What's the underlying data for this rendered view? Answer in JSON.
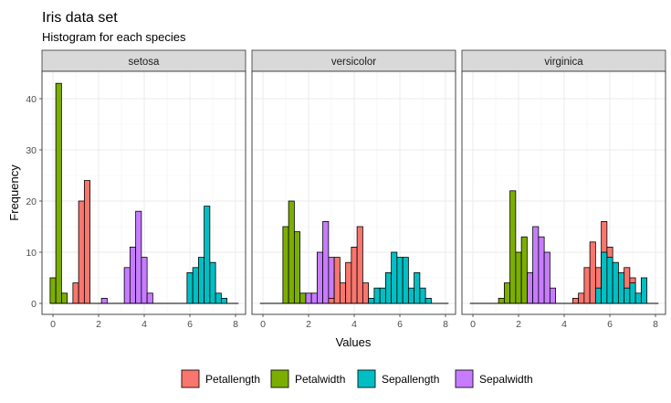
{
  "chart_data": {
    "type": "bar",
    "title": "Iris data set",
    "subtitle": "Histogram for each species",
    "xlabel": "Values",
    "ylabel": "Frequency",
    "xlim": [
      0,
      8
    ],
    "ylim": [
      0,
      45
    ],
    "x_ticks": [
      "0",
      "2",
      "4",
      "6",
      "8"
    ],
    "y_ticks": [
      "0",
      "10",
      "20",
      "30",
      "40"
    ],
    "bin_width": 0.25,
    "bin_start": 0,
    "grid": true,
    "legend_position": "bottom",
    "legend_order": [
      "Petallength",
      "Petalwidth",
      "Sepallength",
      "Sepalwidth"
    ],
    "series_colors": {
      "Petallength": "#F8766D",
      "Petalwidth": "#7CAE00",
      "Sepallength": "#00BFC4",
      "Sepalwidth": "#C77CFF"
    },
    "draw_order": [
      "Sepalwidth",
      "Petallength",
      "Petalwidth",
      "Sepallength"
    ],
    "facets": [
      {
        "label": "setosa",
        "series": [
          {
            "name": "Petallength",
            "values": [
              0,
              0,
              0,
              0,
              4,
              20,
              24,
              0,
              0,
              0,
              0,
              0,
              0,
              0,
              0,
              0,
              0,
              0,
              0,
              0,
              0,
              0,
              0,
              0,
              0,
              0,
              0,
              0,
              0,
              0,
              0,
              0,
              0
            ]
          },
          {
            "name": "Petalwidth",
            "values": [
              5,
              43,
              2,
              0,
              0,
              0,
              0,
              0,
              0,
              0,
              0,
              0,
              0,
              0,
              0,
              0,
              0,
              0,
              0,
              0,
              0,
              0,
              0,
              0,
              0,
              0,
              0,
              0,
              0,
              0,
              0,
              0,
              0
            ]
          },
          {
            "name": "Sepallength",
            "values": [
              0,
              0,
              0,
              0,
              0,
              0,
              0,
              0,
              0,
              0,
              0,
              0,
              0,
              0,
              0,
              0,
              0,
              0,
              0,
              0,
              0,
              0,
              0,
              0,
              6,
              7,
              9,
              19,
              8,
              2,
              1,
              0,
              0
            ]
          },
          {
            "name": "Sepalwidth",
            "values": [
              0,
              0,
              0,
              0,
              0,
              0,
              0,
              0,
              0,
              1,
              0,
              0,
              0,
              7,
              11,
              18,
              9,
              2,
              0,
              0,
              0,
              0,
              0,
              0,
              0,
              0,
              0,
              0,
              0,
              0,
              0,
              0,
              0
            ]
          }
        ]
      },
      {
        "label": "versicolor",
        "series": [
          {
            "name": "Petallength",
            "values": [
              0,
              0,
              0,
              0,
              0,
              0,
              0,
              0,
              0,
              0,
              0,
              0,
              1,
              9,
              4,
              8,
              11,
              15,
              4,
              0,
              0,
              0,
              0,
              0,
              0,
              0,
              0,
              0,
              0,
              0,
              0,
              0,
              0
            ]
          },
          {
            "name": "Petalwidth",
            "values": [
              0,
              0,
              0,
              0,
              15,
              20,
              14,
              2,
              0,
              0,
              0,
              0,
              0,
              0,
              0,
              0,
              0,
              0,
              0,
              0,
              0,
              0,
              0,
              0,
              0,
              0,
              0,
              0,
              0,
              0,
              0,
              0,
              0
            ]
          },
          {
            "name": "Sepallength",
            "values": [
              0,
              0,
              0,
              0,
              0,
              0,
              0,
              0,
              0,
              0,
              0,
              0,
              0,
              0,
              0,
              0,
              0,
              0,
              0,
              1,
              3,
              3,
              6,
              10,
              9,
              9,
              3,
              6,
              3,
              1,
              0,
              0,
              0
            ]
          },
          {
            "name": "Sepalwidth",
            "values": [
              0,
              0,
              0,
              0,
              0,
              0,
              0,
              0,
              2,
              2,
              10,
              16,
              9,
              6,
              3,
              2,
              0,
              0,
              0,
              0,
              0,
              0,
              0,
              0,
              0,
              0,
              0,
              0,
              0,
              0,
              0,
              0,
              0
            ]
          }
        ]
      },
      {
        "label": "virginica",
        "series": [
          {
            "name": "Petallength",
            "values": [
              0,
              0,
              0,
              0,
              0,
              0,
              0,
              0,
              0,
              0,
              0,
              0,
              0,
              0,
              0,
              0,
              0,
              0,
              1,
              2,
              7,
              12,
              7,
              16,
              11,
              3,
              5,
              7,
              5,
              0,
              0,
              0,
              0
            ]
          },
          {
            "name": "Petalwidth",
            "values": [
              0,
              0,
              0,
              0,
              0,
              1,
              4,
              22,
              10,
              13,
              0,
              0,
              0,
              0,
              0,
              0,
              0,
              0,
              0,
              0,
              0,
              0,
              0,
              0,
              0,
              0,
              0,
              0,
              0,
              0,
              0,
              0,
              0
            ]
          },
          {
            "name": "Sepallength",
            "values": [
              0,
              0,
              0,
              0,
              0,
              0,
              0,
              0,
              0,
              0,
              0,
              0,
              0,
              0,
              0,
              0,
              0,
              0,
              0,
              0,
              0,
              0,
              3,
              10,
              9,
              8,
              6,
              3,
              4,
              2,
              5,
              0,
              0
            ]
          },
          {
            "name": "Sepalwidth",
            "values": [
              0,
              0,
              0,
              0,
              0,
              0,
              0,
              0,
              0,
              1,
              6,
              15,
              13,
              10,
              3,
              0,
              0,
              0,
              0,
              0,
              0,
              0,
              0,
              0,
              0,
              0,
              0,
              0,
              0,
              0,
              0,
              0,
              0
            ]
          }
        ]
      }
    ]
  }
}
